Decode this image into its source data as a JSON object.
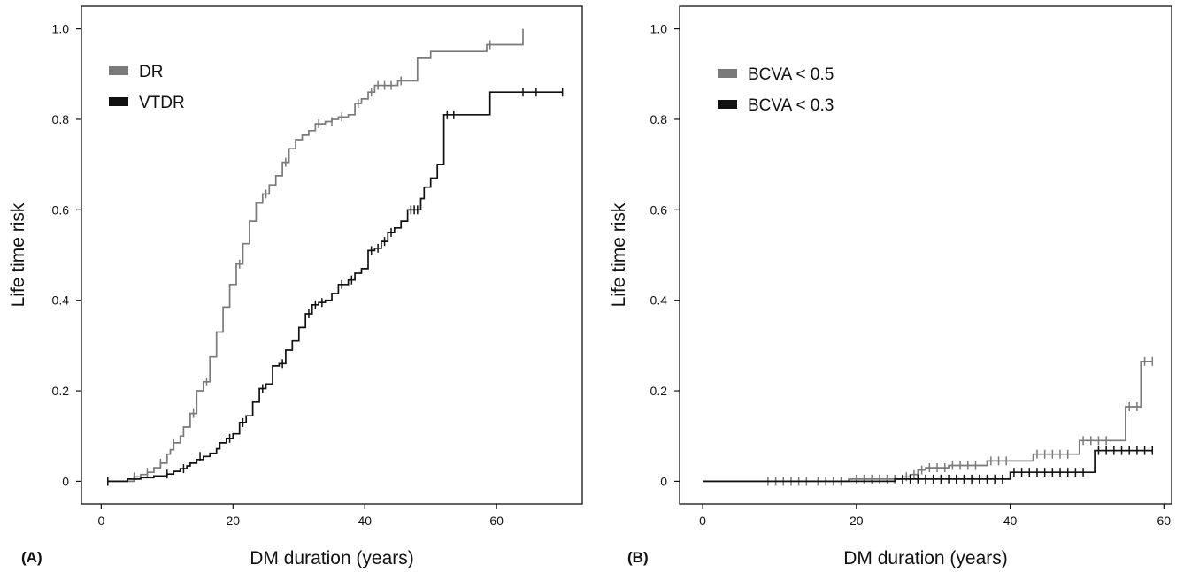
{
  "chart_data": [
    {
      "type": "line",
      "panel_label": "(A)",
      "xlabel": "DM duration (years)",
      "ylabel": "Life time risk",
      "xlim": [
        -3,
        73
      ],
      "ylim": [
        -0.05,
        1.05
      ],
      "x_ticks": [
        0,
        20,
        40,
        60
      ],
      "y_ticks": [
        0,
        0.2,
        0.4,
        0.6,
        0.8,
        1.0
      ],
      "y_tick_labels": [
        "0",
        "0.2",
        "0.4",
        "0.6",
        "0.8",
        "1.0"
      ],
      "grid": false,
      "legend_position": "top-left",
      "series": [
        {
          "name": "DR",
          "color": "#7a7a7a",
          "steps": [
            [
              1,
              0
            ],
            [
              5,
              0.01
            ],
            [
              6,
              0.015
            ],
            [
              7,
              0.02
            ],
            [
              8,
              0.03
            ],
            [
              9,
              0.04
            ],
            [
              10,
              0.06
            ],
            [
              10.5,
              0.07
            ],
            [
              11,
              0.085
            ],
            [
              12,
              0.1
            ],
            [
              12.5,
              0.12
            ],
            [
              13.5,
              0.15
            ],
            [
              14.5,
              0.2
            ],
            [
              15.5,
              0.22
            ],
            [
              16.5,
              0.275
            ],
            [
              17.5,
              0.33
            ],
            [
              18.5,
              0.385
            ],
            [
              19.5,
              0.435
            ],
            [
              20.5,
              0.48
            ],
            [
              21.5,
              0.525
            ],
            [
              22.5,
              0.575
            ],
            [
              23.5,
              0.615
            ],
            [
              24.5,
              0.635
            ],
            [
              25.5,
              0.655
            ],
            [
              26.5,
              0.675
            ],
            [
              27.5,
              0.705
            ],
            [
              28.5,
              0.735
            ],
            [
              29.5,
              0.755
            ],
            [
              30.5,
              0.765
            ],
            [
              31.5,
              0.775
            ],
            [
              32.5,
              0.79
            ],
            [
              34,
              0.795
            ],
            [
              35,
              0.8
            ],
            [
              36,
              0.805
            ],
            [
              37.5,
              0.81
            ],
            [
              38.5,
              0.835
            ],
            [
              39.5,
              0.845
            ],
            [
              40.5,
              0.86
            ],
            [
              41.5,
              0.875
            ],
            [
              45,
              0.885
            ],
            [
              48,
              0.935
            ],
            [
              50,
              0.95
            ],
            [
              58.5,
              0.965
            ],
            [
              64,
              1.0
            ]
          ],
          "censored": [
            [
              1,
              0
            ],
            [
              5,
              0.01
            ],
            [
              7,
              0.02
            ],
            [
              9,
              0.04
            ],
            [
              11,
              0.085
            ],
            [
              14,
              0.15
            ],
            [
              16,
              0.22
            ],
            [
              21,
              0.48
            ],
            [
              25,
              0.635
            ],
            [
              28,
              0.705
            ],
            [
              33,
              0.79
            ],
            [
              35,
              0.795
            ],
            [
              36.5,
              0.805
            ],
            [
              39,
              0.835
            ],
            [
              41,
              0.86
            ],
            [
              42,
              0.875
            ],
            [
              43,
              0.875
            ],
            [
              44,
              0.875
            ],
            [
              45.5,
              0.885
            ],
            [
              59,
              0.965
            ]
          ]
        },
        {
          "name": "VTDR",
          "color": "#111111",
          "steps": [
            [
              1,
              0
            ],
            [
              4,
              0.005
            ],
            [
              6,
              0.008
            ],
            [
              8,
              0.012
            ],
            [
              10,
              0.016
            ],
            [
              11,
              0.022
            ],
            [
              12,
              0.028
            ],
            [
              13,
              0.034
            ],
            [
              13.5,
              0.04
            ],
            [
              14.5,
              0.048
            ],
            [
              15.5,
              0.055
            ],
            [
              16.5,
              0.062
            ],
            [
              17.5,
              0.072
            ],
            [
              18,
              0.085
            ],
            [
              19,
              0.095
            ],
            [
              20,
              0.105
            ],
            [
              21,
              0.13
            ],
            [
              22,
              0.145
            ],
            [
              23,
              0.175
            ],
            [
              24,
              0.205
            ],
            [
              25,
              0.215
            ],
            [
              26,
              0.255
            ],
            [
              27,
              0.26
            ],
            [
              28,
              0.29
            ],
            [
              29,
              0.31
            ],
            [
              30,
              0.34
            ],
            [
              31,
              0.37
            ],
            [
              32,
              0.39
            ],
            [
              33,
              0.395
            ],
            [
              34,
              0.4
            ],
            [
              35,
              0.415
            ],
            [
              36,
              0.435
            ],
            [
              37.5,
              0.445
            ],
            [
              38.5,
              0.46
            ],
            [
              39.5,
              0.47
            ],
            [
              40.5,
              0.51
            ],
            [
              41.5,
              0.515
            ],
            [
              42.5,
              0.53
            ],
            [
              43.5,
              0.55
            ],
            [
              44.5,
              0.56
            ],
            [
              45.5,
              0.575
            ],
            [
              46.5,
              0.6
            ],
            [
              48.5,
              0.625
            ],
            [
              49,
              0.65
            ],
            [
              50,
              0.67
            ],
            [
              51,
              0.7
            ],
            [
              52,
              0.81
            ],
            [
              55,
              0.81
            ],
            [
              57,
              0.81
            ],
            [
              58,
              0.81
            ],
            [
              59,
              0.86
            ],
            [
              70,
              0.86
            ]
          ],
          "censored": [
            [
              1,
              0
            ],
            [
              10,
              0.016
            ],
            [
              12.5,
              0.028
            ],
            [
              15,
              0.055
            ],
            [
              19.5,
              0.095
            ],
            [
              21.5,
              0.13
            ],
            [
              24.5,
              0.205
            ],
            [
              27.5,
              0.26
            ],
            [
              31.5,
              0.37
            ],
            [
              32.5,
              0.39
            ],
            [
              33.5,
              0.395
            ],
            [
              36.5,
              0.435
            ],
            [
              38,
              0.445
            ],
            [
              41,
              0.51
            ],
            [
              42,
              0.515
            ],
            [
              43,
              0.53
            ],
            [
              44,
              0.55
            ],
            [
              47,
              0.6
            ],
            [
              47.5,
              0.6
            ],
            [
              48,
              0.6
            ],
            [
              52.5,
              0.81
            ],
            [
              53.5,
              0.81
            ],
            [
              64,
              0.86
            ],
            [
              66,
              0.86
            ],
            [
              70,
              0.86
            ]
          ]
        }
      ]
    },
    {
      "type": "line",
      "panel_label": "(B)",
      "xlabel": "DM duration (years)",
      "ylabel": "Life time risk",
      "xlim": [
        -3,
        61
      ],
      "ylim": [
        -0.05,
        1.05
      ],
      "x_ticks": [
        0,
        20,
        40,
        60
      ],
      "y_ticks": [
        0,
        0.2,
        0.4,
        0.6,
        0.8,
        1.0
      ],
      "y_tick_labels": [
        "0",
        "0.2",
        "0.4",
        "0.6",
        "0.8",
        "1.0"
      ],
      "grid": false,
      "legend_position": "top-left",
      "series": [
        {
          "name": "BCVA < 0.5",
          "color": "#7a7a7a",
          "steps": [
            [
              0,
              0
            ],
            [
              19,
              0.005
            ],
            [
              26,
              0.01
            ],
            [
              27,
              0.015
            ],
            [
              28,
              0.025
            ],
            [
              29,
              0.03
            ],
            [
              32,
              0.035
            ],
            [
              37,
              0.045
            ],
            [
              43,
              0.06
            ],
            [
              49,
              0.09
            ],
            [
              55,
              0.165
            ],
            [
              57,
              0.265
            ],
            [
              58.5,
              0.265
            ]
          ],
          "censored": [
            [
              8.5,
              0
            ],
            [
              9.5,
              0
            ],
            [
              10.5,
              0
            ],
            [
              11.5,
              0
            ],
            [
              12.5,
              0
            ],
            [
              13.5,
              0
            ],
            [
              15,
              0
            ],
            [
              16,
              0
            ],
            [
              17,
              0
            ],
            [
              18,
              0
            ],
            [
              20,
              0.005
            ],
            [
              21,
              0.005
            ],
            [
              22,
              0.005
            ],
            [
              23,
              0.005
            ],
            [
              24,
              0.005
            ],
            [
              25,
              0.005
            ],
            [
              26.5,
              0.01
            ],
            [
              27.5,
              0.015
            ],
            [
              28.5,
              0.025
            ],
            [
              29.5,
              0.03
            ],
            [
              30.5,
              0.03
            ],
            [
              31.5,
              0.03
            ],
            [
              32.5,
              0.035
            ],
            [
              33.5,
              0.035
            ],
            [
              34.5,
              0.035
            ],
            [
              35.5,
              0.035
            ],
            [
              37.5,
              0.045
            ],
            [
              38.5,
              0.045
            ],
            [
              39.5,
              0.045
            ],
            [
              43.5,
              0.06
            ],
            [
              44.5,
              0.06
            ],
            [
              45.5,
              0.06
            ],
            [
              46.5,
              0.06
            ],
            [
              47.5,
              0.06
            ],
            [
              49.5,
              0.09
            ],
            [
              50.5,
              0.09
            ],
            [
              51.5,
              0.09
            ],
            [
              52.5,
              0.09
            ],
            [
              55.5,
              0.165
            ],
            [
              56.5,
              0.165
            ],
            [
              57.5,
              0.265
            ],
            [
              58.5,
              0.265
            ]
          ]
        },
        {
          "name": "BCVA < 0.3",
          "color": "#111111",
          "steps": [
            [
              0,
              0
            ],
            [
              25,
              0.005
            ],
            [
              40,
              0.02
            ],
            [
              51,
              0.068
            ],
            [
              58.5,
              0.068
            ]
          ],
          "censored": [
            [
              26,
              0.005
            ],
            [
              27,
              0.005
            ],
            [
              28,
              0.005
            ],
            [
              29,
              0.005
            ],
            [
              30,
              0.005
            ],
            [
              31,
              0.005
            ],
            [
              32,
              0.005
            ],
            [
              33,
              0.005
            ],
            [
              34,
              0.005
            ],
            [
              35,
              0.005
            ],
            [
              36,
              0.005
            ],
            [
              37,
              0.005
            ],
            [
              38,
              0.005
            ],
            [
              39,
              0.005
            ],
            [
              40.5,
              0.02
            ],
            [
              41.5,
              0.02
            ],
            [
              42.5,
              0.02
            ],
            [
              43.5,
              0.02
            ],
            [
              44.5,
              0.02
            ],
            [
              45.5,
              0.02
            ],
            [
              46.5,
              0.02
            ],
            [
              47.5,
              0.02
            ],
            [
              48.5,
              0.02
            ],
            [
              49.5,
              0.02
            ],
            [
              51.5,
              0.068
            ],
            [
              52.5,
              0.068
            ],
            [
              53.5,
              0.068
            ],
            [
              54.5,
              0.068
            ],
            [
              55.5,
              0.068
            ],
            [
              56.5,
              0.068
            ],
            [
              57.5,
              0.068
            ],
            [
              58.5,
              0.068
            ]
          ]
        }
      ]
    }
  ]
}
